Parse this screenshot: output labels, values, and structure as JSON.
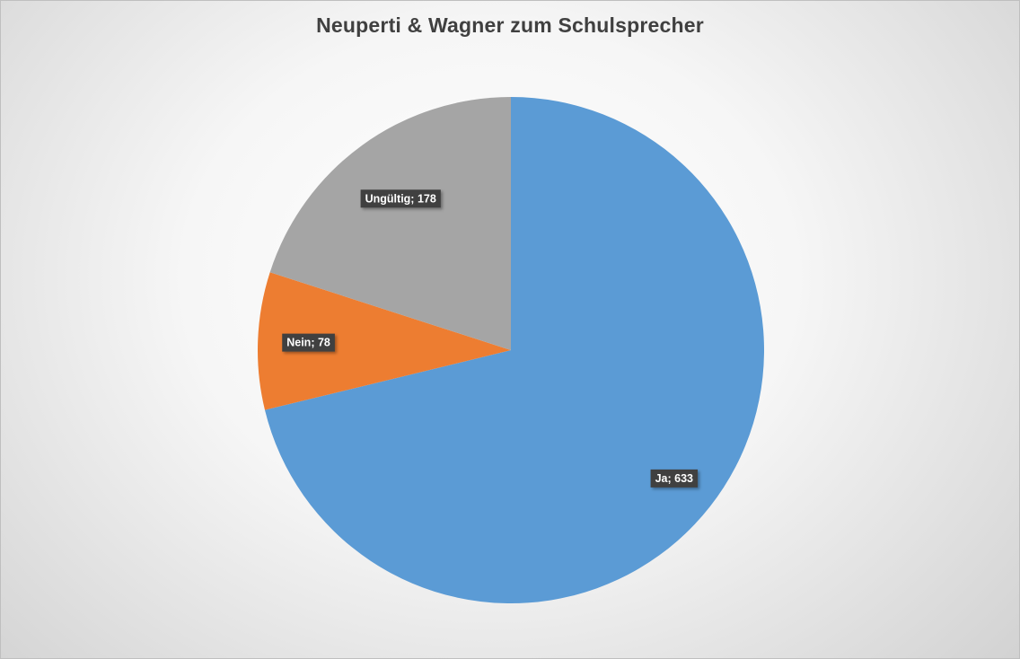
{
  "chart_data": {
    "type": "pie",
    "title": "Neuperti & Wagner zum Schulsprecher",
    "categories": [
      "Ja",
      "Nein",
      "Ungültig"
    ],
    "values": [
      633,
      78,
      178
    ],
    "colors": [
      "#5B9BD5",
      "#ED7D31",
      "#A5A5A5"
    ],
    "data_labels": [
      "Ja; 633",
      "Nein; 78",
      "Ungültig; 178"
    ],
    "start_angle_deg": 0,
    "direction": "clockwise",
    "legend": "none"
  }
}
